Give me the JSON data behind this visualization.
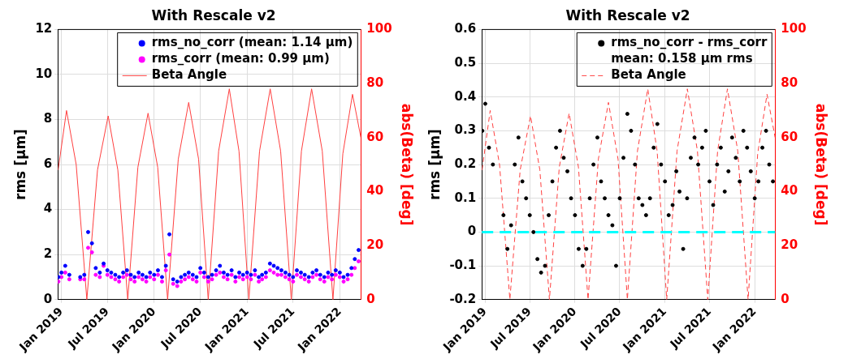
{
  "chart_data": [
    {
      "type": "scatter",
      "title": "With Rescale v2",
      "ylabel": "rms [µm]",
      "y2label": "abs(Beta) [deg]",
      "x": [
        "2018-12-20",
        "2019-01-01",
        "2019-01-16",
        "2019-02-01",
        "2019-02-16",
        "2019-03-01",
        "2019-03-16",
        "2019-04-01",
        "2019-04-16",
        "2019-05-01",
        "2019-05-16",
        "2019-06-01",
        "2019-06-16",
        "2019-07-01",
        "2019-07-16",
        "2019-08-01",
        "2019-08-16",
        "2019-09-01",
        "2019-09-16",
        "2019-10-01",
        "2019-10-16",
        "2019-11-01",
        "2019-11-16",
        "2019-12-01",
        "2019-12-16",
        "2020-01-01",
        "2020-01-16",
        "2020-02-01",
        "2020-02-16",
        "2020-03-01",
        "2020-03-16",
        "2020-04-01",
        "2020-04-16",
        "2020-05-01",
        "2020-05-16",
        "2020-06-01",
        "2020-06-16",
        "2020-07-01",
        "2020-07-16",
        "2020-08-01",
        "2020-08-16",
        "2020-09-01",
        "2020-09-16",
        "2020-10-01",
        "2020-10-16",
        "2020-11-01",
        "2020-11-16",
        "2020-12-01",
        "2020-12-16",
        "2021-01-01",
        "2021-01-16",
        "2021-02-01",
        "2021-02-16",
        "2021-03-01",
        "2021-03-16",
        "2021-04-01",
        "2021-04-16",
        "2021-05-01",
        "2021-05-16",
        "2021-06-01",
        "2021-06-16",
        "2021-07-01",
        "2021-07-16",
        "2021-08-01",
        "2021-08-16",
        "2021-09-01",
        "2021-09-16",
        "2021-10-01",
        "2021-10-16",
        "2021-11-01",
        "2021-11-16",
        "2021-12-01",
        "2021-12-16",
        "2022-01-01",
        "2022-01-16",
        "2022-02-01",
        "2022-02-16",
        "2022-03-01",
        "2022-03-16"
      ],
      "series": [
        {
          "name": "rms_no_corr (mean: 1.14 µm)",
          "marker": "circle",
          "color": "#0000ff",
          "values": [
            1.0,
            1.2,
            1.5,
            1.1,
            null,
            null,
            1.0,
            1.1,
            3.0,
            2.5,
            1.4,
            1.2,
            1.6,
            1.3,
            1.2,
            1.1,
            1.0,
            1.2,
            1.3,
            1.1,
            1.0,
            1.2,
            1.1,
            1.0,
            1.2,
            1.1,
            1.3,
            1.0,
            1.5,
            2.9,
            0.9,
            0.8,
            1.0,
            1.1,
            1.2,
            1.1,
            1.0,
            1.4,
            1.2,
            1.0,
            1.1,
            1.3,
            1.5,
            1.2,
            1.1,
            1.3,
            1.0,
            1.2,
            1.1,
            1.2,
            1.1,
            1.3,
            1.0,
            1.1,
            1.2,
            1.6,
            1.5,
            1.4,
            1.3,
            1.2,
            1.1,
            1.0,
            1.3,
            1.2,
            1.1,
            1.0,
            1.2,
            1.3,
            1.1,
            1.0,
            1.2,
            1.1,
            1.3,
            1.2,
            1.0,
            1.1,
            1.4,
            1.8,
            2.2
          ]
        },
        {
          "name": "rms_corr (mean: 0.99 µm)",
          "marker": "circle",
          "color": "#ff00ff",
          "values": [
            0.8,
            1.0,
            1.2,
            0.9,
            null,
            null,
            0.9,
            0.9,
            2.3,
            2.1,
            1.1,
            1.0,
            1.5,
            1.1,
            1.0,
            0.9,
            0.8,
            1.0,
            1.1,
            0.9,
            0.8,
            1.0,
            0.9,
            0.8,
            1.0,
            0.9,
            1.1,
            0.8,
            1.3,
            2.0,
            0.7,
            0.6,
            0.8,
            0.9,
            1.0,
            0.9,
            0.8,
            1.2,
            1.0,
            0.8,
            0.9,
            1.1,
            1.2,
            1.0,
            0.9,
            1.1,
            0.8,
            1.0,
            0.9,
            1.0,
            0.9,
            1.1,
            0.8,
            0.9,
            1.0,
            1.3,
            1.2,
            1.1,
            1.1,
            1.0,
            0.9,
            0.8,
            1.1,
            1.0,
            0.9,
            0.8,
            1.0,
            1.1,
            0.9,
            0.8,
            1.0,
            0.9,
            1.1,
            1.0,
            0.8,
            0.9,
            1.1,
            1.4,
            1.7
          ]
        },
        {
          "name": "Beta Angle",
          "type": "line",
          "axis": "y2",
          "marker": "none",
          "line_style": "solid",
          "color": "#ff4040",
          "x": [
            "2018-12-19",
            "2019-01-21",
            "2019-02-28",
            "2019-04-11",
            "2019-05-23",
            "2019-07-04",
            "2019-08-11",
            "2019-09-19",
            "2019-10-29",
            "2019-12-08",
            "2020-01-15",
            "2020-02-23",
            "2020-04-05",
            "2020-05-16",
            "2020-06-24",
            "2020-08-01",
            "2020-09-11",
            "2020-10-23",
            "2020-11-30",
            "2021-01-08",
            "2021-02-19",
            "2021-04-02",
            "2021-05-13",
            "2021-06-24",
            "2021-08-03",
            "2021-09-12",
            "2021-10-24",
            "2021-12-05",
            "2022-01-13",
            "2022-02-20",
            "2022-03-25"
          ],
          "values": [
            48,
            70,
            50,
            0,
            48,
            68,
            48,
            0,
            49,
            69,
            49,
            0,
            52,
            73,
            52,
            0,
            55,
            78,
            55,
            0,
            55,
            78,
            55,
            0,
            55,
            78,
            55,
            0,
            54,
            76,
            60
          ]
        }
      ],
      "xlim": [
        "2018-12-18",
        "2022-03-25"
      ],
      "xticks": [
        {
          "value": "2019-01-01",
          "label": "Jan 2019"
        },
        {
          "value": "2019-07-01",
          "label": "Jul 2019"
        },
        {
          "value": "2020-01-01",
          "label": "Jan 2020"
        },
        {
          "value": "2020-07-01",
          "label": "Jul 2020"
        },
        {
          "value": "2021-01-01",
          "label": "Jan 2021"
        },
        {
          "value": "2021-07-01",
          "label": "Jul 2021"
        },
        {
          "value": "2022-01-01",
          "label": "Jan 2022"
        }
      ],
      "ylim": [
        0,
        12
      ],
      "yticks": [
        0,
        2,
        4,
        6,
        8,
        10,
        12
      ],
      "y2lim": [
        0,
        100
      ],
      "y2ticks": [
        0,
        20,
        40,
        60,
        80,
        100
      ],
      "grid": true,
      "legend": "top right"
    },
    {
      "type": "scatter",
      "title": "With Rescale v2",
      "ylabel": "rms [µm]",
      "y2label": "abs(Beta) [deg]",
      "x": [
        "2018-12-20",
        "2019-01-01",
        "2019-01-16",
        "2019-02-01",
        "2019-02-16",
        "2019-03-01",
        "2019-03-16",
        "2019-04-01",
        "2019-04-16",
        "2019-05-01",
        "2019-05-16",
        "2019-06-01",
        "2019-06-16",
        "2019-07-01",
        "2019-07-16",
        "2019-08-01",
        "2019-08-16",
        "2019-09-01",
        "2019-09-16",
        "2019-10-01",
        "2019-10-16",
        "2019-11-01",
        "2019-11-16",
        "2019-12-01",
        "2019-12-16",
        "2020-01-01",
        "2020-01-16",
        "2020-02-01",
        "2020-02-16",
        "2020-03-01",
        "2020-03-16",
        "2020-04-01",
        "2020-04-16",
        "2020-05-01",
        "2020-05-16",
        "2020-06-01",
        "2020-06-16",
        "2020-07-01",
        "2020-07-16",
        "2020-08-01",
        "2020-08-16",
        "2020-09-01",
        "2020-09-16",
        "2020-10-01",
        "2020-10-16",
        "2020-11-01",
        "2020-11-16",
        "2020-12-01",
        "2020-12-16",
        "2021-01-01",
        "2021-01-16",
        "2021-02-01",
        "2021-02-16",
        "2021-03-01",
        "2021-03-16",
        "2021-04-01",
        "2021-04-16",
        "2021-05-01",
        "2021-05-16",
        "2021-06-01",
        "2021-06-16",
        "2021-07-01",
        "2021-07-16",
        "2021-08-01",
        "2021-08-16",
        "2021-09-01",
        "2021-09-16",
        "2021-10-01",
        "2021-10-16",
        "2021-11-01",
        "2021-11-16",
        "2021-12-01",
        "2021-12-16",
        "2022-01-01",
        "2022-01-16",
        "2022-02-01",
        "2022-02-16",
        "2022-03-01",
        "2022-03-16"
      ],
      "series": [
        {
          "name": "rms_no_corr - rms_corr\nmean: 0.158 µm rms",
          "marker": "circle",
          "color": "#000000",
          "values": [
            0.3,
            0.38,
            0.25,
            0.2,
            null,
            null,
            0.05,
            -0.05,
            0.02,
            0.2,
            0.28,
            0.15,
            0.1,
            0.05,
            0.0,
            -0.08,
            -0.12,
            -0.1,
            0.05,
            0.15,
            0.25,
            0.3,
            0.22,
            0.18,
            0.1,
            0.05,
            -0.05,
            -0.1,
            -0.05,
            0.1,
            0.2,
            0.28,
            0.15,
            0.1,
            0.05,
            0.02,
            -0.1,
            0.1,
            0.22,
            0.35,
            0.3,
            0.2,
            0.1,
            0.08,
            0.05,
            0.1,
            0.25,
            0.32,
            0.2,
            0.15,
            0.05,
            0.08,
            0.18,
            0.12,
            -0.05,
            0.1,
            0.22,
            0.28,
            0.2,
            0.25,
            0.3,
            0.15,
            0.08,
            0.2,
            0.25,
            0.12,
            0.18,
            0.28,
            0.22,
            0.15,
            0.3,
            0.25,
            0.18,
            0.1,
            0.15,
            0.25,
            0.3,
            0.2,
            0.15
          ]
        },
        {
          "name": "Beta Angle",
          "type": "line",
          "axis": "y2",
          "marker": "none",
          "line_style": "dashed",
          "color": "#ff4040",
          "x": [
            "2018-12-19",
            "2019-01-21",
            "2019-02-28",
            "2019-04-11",
            "2019-05-23",
            "2019-07-04",
            "2019-08-11",
            "2019-09-19",
            "2019-10-29",
            "2019-12-08",
            "2020-01-15",
            "2020-02-23",
            "2020-04-05",
            "2020-05-16",
            "2020-06-24",
            "2020-08-01",
            "2020-09-11",
            "2020-10-23",
            "2020-11-30",
            "2021-01-08",
            "2021-02-19",
            "2021-04-02",
            "2021-05-13",
            "2021-06-24",
            "2021-08-03",
            "2021-09-12",
            "2021-10-24",
            "2021-12-05",
            "2022-01-13",
            "2022-02-20",
            "2022-03-25"
          ],
          "values": [
            48,
            70,
            50,
            0,
            48,
            68,
            48,
            0,
            49,
            69,
            49,
            0,
            52,
            73,
            52,
            0,
            55,
            78,
            55,
            0,
            55,
            78,
            55,
            0,
            55,
            78,
            55,
            0,
            54,
            76,
            60
          ]
        }
      ],
      "xlim": [
        "2018-12-18",
        "2022-03-25"
      ],
      "xticks": [
        {
          "value": "2019-01-01",
          "label": "Jan 2019"
        },
        {
          "value": "2019-07-01",
          "label": "Jul 2019"
        },
        {
          "value": "2020-01-01",
          "label": "Jan 2020"
        },
        {
          "value": "2020-07-01",
          "label": "Jul 2020"
        },
        {
          "value": "2021-01-01",
          "label": "Jan 2021"
        },
        {
          "value": "2021-07-01",
          "label": "Jul 2021"
        },
        {
          "value": "2022-01-01",
          "label": "Jan 2022"
        }
      ],
      "ylim": [
        -0.2,
        0.6
      ],
      "yticks": [
        -0.2,
        -0.1,
        0,
        0.1,
        0.2,
        0.3,
        0.4,
        0.5,
        0.6
      ],
      "y2lim": [
        0,
        100
      ],
      "y2ticks": [
        0,
        20,
        40,
        60,
        80,
        100
      ],
      "ref_lines": [
        {
          "axis": "y",
          "value": 0,
          "color": "#00ffff",
          "line_style": "dashed"
        }
      ],
      "grid": true,
      "legend": "top right"
    }
  ]
}
